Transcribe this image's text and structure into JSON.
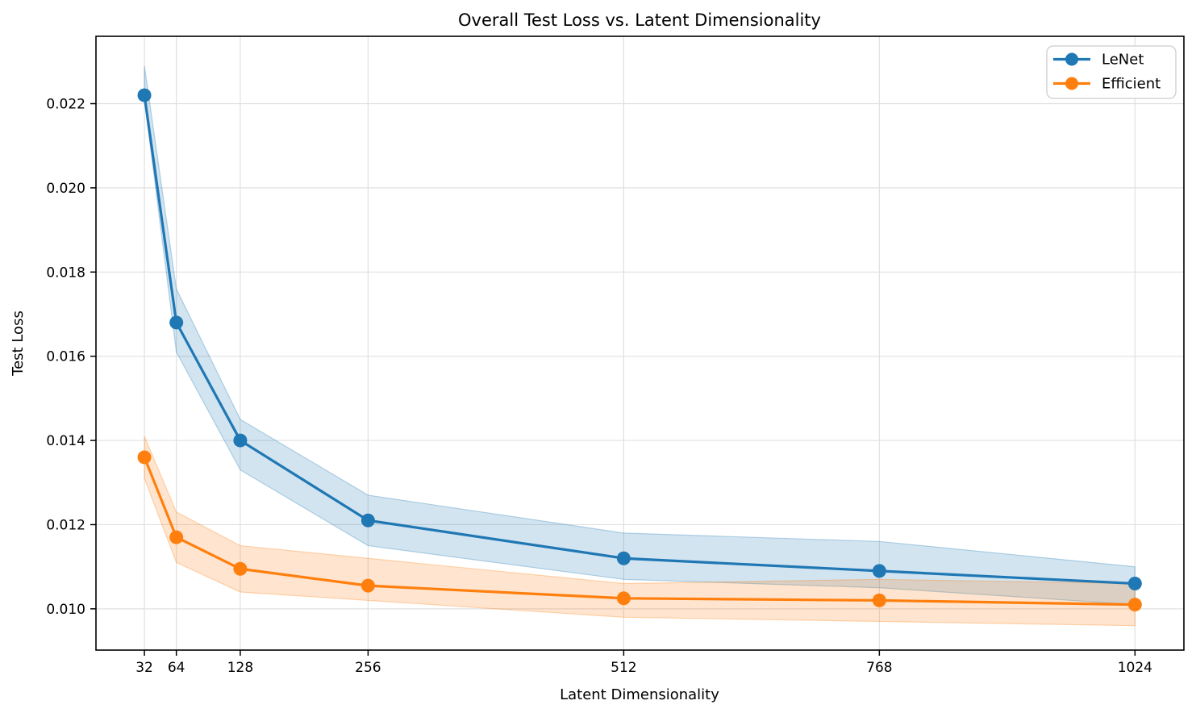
{
  "figure": {
    "background": "#ffffff",
    "text_color": "#000000"
  },
  "chart_data": {
    "type": "line",
    "title": "Overall Test Loss vs. Latent Dimensionality",
    "xlabel": "Latent Dimensionality",
    "ylabel": "Test Loss",
    "x": [
      32,
      64,
      128,
      256,
      512,
      768,
      1024
    ],
    "x_tick_labels": [
      "32",
      "64",
      "128",
      "256",
      "512",
      "768",
      "1024"
    ],
    "y_ticks": [
      0.01,
      0.012,
      0.014,
      0.016,
      0.018,
      0.02,
      0.022
    ],
    "y_tick_labels": [
      "0.010",
      "0.012",
      "0.014",
      "0.016",
      "0.018",
      "0.020",
      "0.022"
    ],
    "xlim": [
      -16.5,
      1073
    ],
    "ylim": [
      0.00902,
      0.0236
    ],
    "grid": true,
    "grid_color": "#e0e0e0",
    "spine_color": "#000000",
    "legend": {
      "position": "upper right",
      "border_color": "#cccccc",
      "background": "#ffffff",
      "entries": [
        "LeNet",
        "Efficient"
      ]
    },
    "series": [
      {
        "name": "LeNet",
        "color": "#1f77b4",
        "values": [
          0.0222,
          0.0168,
          0.014,
          0.0121,
          0.0112,
          0.0109,
          0.0106
        ],
        "band_upper": [
          0.0229,
          0.0176,
          0.0145,
          0.0127,
          0.0118,
          0.0116,
          0.011
        ],
        "band_lower": [
          0.0221,
          0.0161,
          0.0133,
          0.0115,
          0.0107,
          0.0105,
          0.0101
        ],
        "band_alpha": 0.2
      },
      {
        "name": "Efficient",
        "color": "#ff7f0e",
        "values": [
          0.0136,
          0.0117,
          0.01095,
          0.01055,
          0.01025,
          0.0102,
          0.0101
        ],
        "band_upper": [
          0.0141,
          0.0123,
          0.0115,
          0.0112,
          0.0106,
          0.0107,
          0.0106
        ],
        "band_lower": [
          0.0131,
          0.0111,
          0.0104,
          0.0102,
          0.0098,
          0.0097,
          0.0096
        ],
        "band_alpha": 0.2
      }
    ]
  }
}
